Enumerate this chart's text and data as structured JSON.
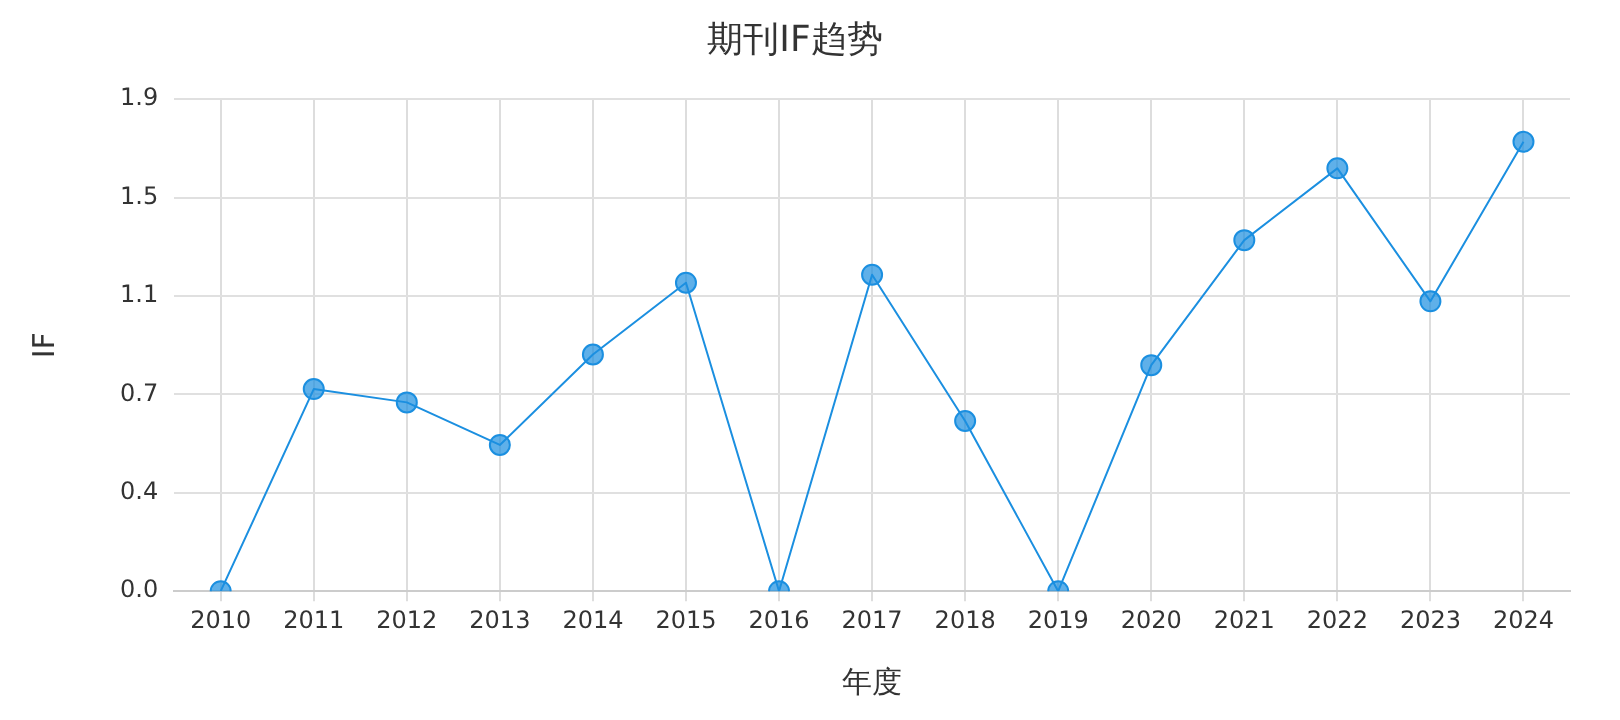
{
  "chart_data": {
    "type": "line",
    "title": "期刊IF趋势",
    "xlabel": "年度",
    "ylabel": "IF",
    "categories": [
      "2010",
      "2011",
      "2012",
      "2013",
      "2014",
      "2015",
      "2016",
      "2017",
      "2018",
      "2019",
      "2020",
      "2021",
      "2022",
      "2023",
      "2024"
    ],
    "series": [
      {
        "color": "#1b8fe0",
        "values": [
          0,
          0.76,
          0.71,
          0.55,
          0.89,
          1.16,
          0,
          1.19,
          0.64,
          0,
          0.85,
          1.32,
          1.59,
          1.09,
          1.69
        ]
      }
    ],
    "ylim": [
      0,
      1.85
    ],
    "yticks": [
      {
        "value": 0,
        "label": "0.0"
      },
      {
        "value": 0.37,
        "label": "0.4"
      },
      {
        "value": 0.74,
        "label": "0.7"
      },
      {
        "value": 1.11,
        "label": "1.1"
      },
      {
        "value": 1.48,
        "label": "1.5"
      },
      {
        "value": 1.85,
        "label": "1.9"
      }
    ],
    "grid": true,
    "legend": false,
    "marker": "circle",
    "line_style": "solid"
  }
}
